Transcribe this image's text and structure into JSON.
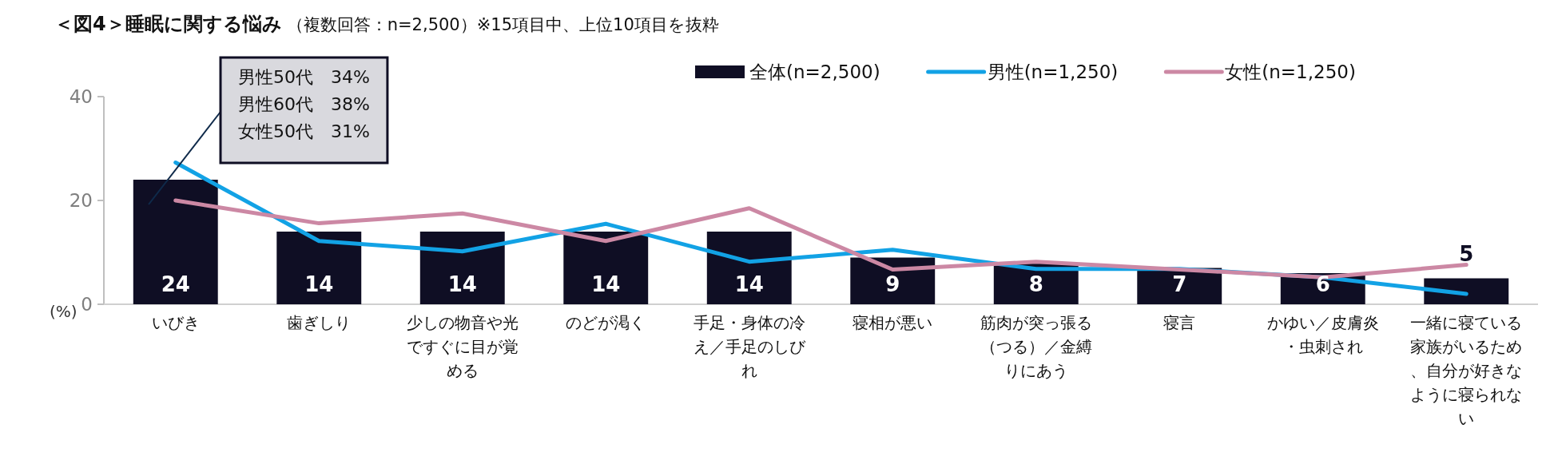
{
  "chart_data": {
    "type": "bar",
    "title": "＜図4＞睡眠に関する悩み",
    "subtitle": "（複数回答：n=2,500）※15項目中、上位10項目を抜粋",
    "ylabel": "(%)",
    "categories": [
      "いびき",
      "歯ぎしり",
      "少しの物音や光ですぐに目が覚める",
      "のどが渇く",
      "手足・身体の冷え／手足のしびれ",
      "寝相が悪い",
      "筋肉が突っ張る（つる）／金縛りにあう",
      "寝言",
      "かゆい／皮膚炎・虫刺され",
      "一緒に寝ている家族がいるため、自分が好きなように寝られない"
    ],
    "series": [
      {
        "name": "全体(n=2,500)",
        "color": "#0f0e24",
        "values": [
          24,
          14,
          14,
          14,
          14,
          9,
          8,
          7,
          6,
          5
        ],
        "value_labels": [
          "24",
          "14",
          "14",
          "14",
          "14",
          "9",
          "8",
          "7",
          "6",
          "5"
        ]
      },
      {
        "type": "line",
        "name": "男性(n=1,250)",
        "color": "#12a2e5",
        "values": [
          27.3,
          12.2,
          10.2,
          15.5,
          8.2,
          10.5,
          6.8,
          6.8,
          5.2,
          2
        ]
      },
      {
        "type": "line",
        "name": "女性(n=1,250)",
        "color": "#cc88a4",
        "values": [
          20,
          15.6,
          17.5,
          12.2,
          18.5,
          6.7,
          8.2,
          6.7,
          5.2,
          7.6
        ]
      }
    ],
    "ylim": [
      0,
      40
    ],
    "yticks": [
      0,
      20,
      40
    ],
    "legend": "top right",
    "annotations": [
      "男性50代　34%",
      "男性60代　38%",
      "女性50代　31%"
    ]
  }
}
